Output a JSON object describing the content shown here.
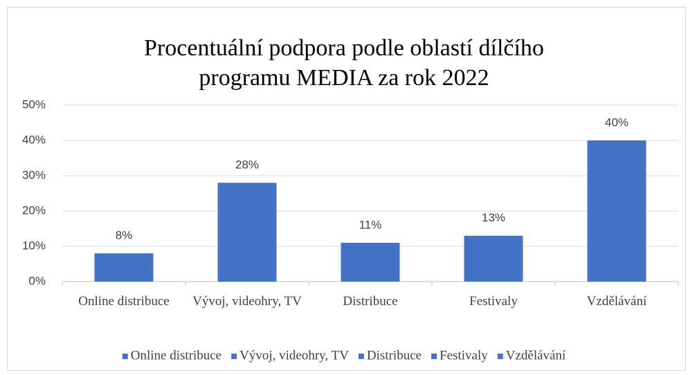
{
  "chart_data": {
    "type": "bar",
    "title": "Procentuální podpora podle oblastí dílčího programu MEDIA za rok 2022",
    "categories": [
      "Online distribuce",
      "Vývoj, videohry, TV",
      "Distribuce",
      "Festivaly",
      "Vzdělávání"
    ],
    "values": [
      8,
      28,
      11,
      13,
      40
    ],
    "value_labels": [
      "8%",
      "28%",
      "11%",
      "13%",
      "40%"
    ],
    "color": "#4472c4",
    "ylim": [
      0,
      50
    ],
    "yticks": [
      {
        "value": 0,
        "label": "0%"
      },
      {
        "value": 10,
        "label": "10%"
      },
      {
        "value": 20,
        "label": "20%"
      },
      {
        "value": 30,
        "label": "30%"
      },
      {
        "value": 40,
        "label": "40%"
      },
      {
        "value": 50,
        "label": "50%"
      }
    ],
    "grid": true,
    "legend": {
      "position": "bottom",
      "entries": [
        "Online distribuce",
        "Vývoj, videohry, TV",
        "Distribuce",
        "Festivaly",
        "Vzdělávání"
      ]
    }
  }
}
